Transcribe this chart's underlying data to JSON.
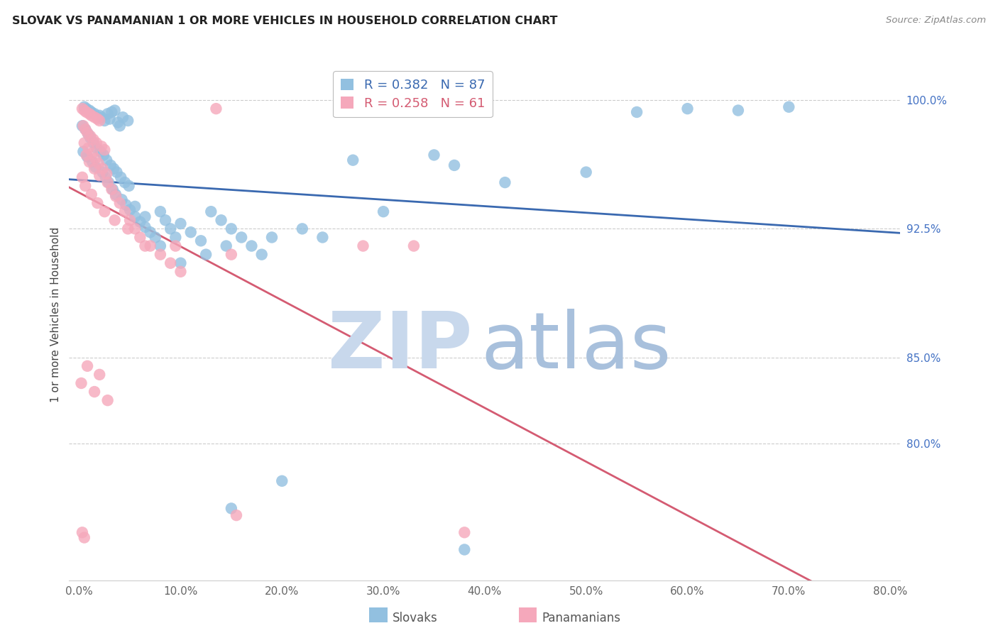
{
  "title": "SLOVAK VS PANAMANIAN 1 OR MORE VEHICLES IN HOUSEHOLD CORRELATION CHART",
  "source": "Source: ZipAtlas.com",
  "xlabel_vals": [
    0.0,
    10.0,
    20.0,
    30.0,
    40.0,
    50.0,
    60.0,
    70.0,
    80.0
  ],
  "ylabel_vals": [
    80.0,
    85.0,
    92.5,
    100.0
  ],
  "ylabel_label": "1 or more Vehicles in Household",
  "xlim": [
    -1.0,
    81.0
  ],
  "ylim": [
    72.0,
    103.0
  ],
  "blue_color": "#92C0E0",
  "pink_color": "#F5A8BB",
  "blue_line_color": "#3A69B0",
  "pink_line_color": "#D45B72",
  "watermark_zip_color": "#C8D8EC",
  "watermark_atlas_color": "#A8C0DC",
  "background_color": "#ffffff",
  "grid_color": "#cccccc",
  "title_color": "#222222",
  "axis_label_color": "#444444",
  "right_tick_color": "#4472c4",
  "tick_color": "#666666",
  "blue_scatter": [
    [
      0.5,
      99.6
    ],
    [
      0.7,
      99.5
    ],
    [
      1.0,
      99.4
    ],
    [
      1.2,
      99.3
    ],
    [
      1.5,
      99.2
    ],
    [
      1.8,
      99.0
    ],
    [
      2.0,
      99.1
    ],
    [
      2.2,
      99.0
    ],
    [
      2.5,
      98.8
    ],
    [
      2.8,
      99.2
    ],
    [
      3.0,
      98.9
    ],
    [
      3.2,
      99.3
    ],
    [
      3.5,
      99.4
    ],
    [
      3.8,
      98.7
    ],
    [
      4.0,
      98.5
    ],
    [
      4.3,
      99.0
    ],
    [
      4.8,
      98.8
    ],
    [
      0.3,
      98.5
    ],
    [
      0.6,
      98.3
    ],
    [
      0.9,
      98.0
    ],
    [
      1.1,
      97.8
    ],
    [
      1.4,
      97.5
    ],
    [
      1.7,
      97.2
    ],
    [
      2.1,
      97.0
    ],
    [
      2.4,
      96.8
    ],
    [
      2.7,
      96.5
    ],
    [
      3.1,
      96.2
    ],
    [
      3.4,
      96.0
    ],
    [
      3.7,
      95.8
    ],
    [
      4.1,
      95.5
    ],
    [
      4.5,
      95.2
    ],
    [
      4.9,
      95.0
    ],
    [
      0.4,
      97.0
    ],
    [
      0.8,
      96.7
    ],
    [
      1.3,
      96.4
    ],
    [
      1.6,
      96.1
    ],
    [
      2.3,
      95.8
    ],
    [
      2.6,
      95.5
    ],
    [
      2.9,
      95.2
    ],
    [
      3.3,
      94.8
    ],
    [
      3.6,
      94.5
    ],
    [
      4.2,
      94.2
    ],
    [
      4.6,
      93.9
    ],
    [
      5.0,
      93.6
    ],
    [
      5.5,
      93.2
    ],
    [
      6.0,
      92.9
    ],
    [
      6.5,
      92.6
    ],
    [
      7.0,
      92.3
    ],
    [
      7.5,
      92.0
    ],
    [
      8.0,
      93.5
    ],
    [
      8.5,
      93.0
    ],
    [
      9.0,
      92.5
    ],
    [
      9.5,
      92.0
    ],
    [
      10.0,
      92.8
    ],
    [
      11.0,
      92.3
    ],
    [
      12.0,
      91.8
    ],
    [
      13.0,
      93.5
    ],
    [
      14.0,
      93.0
    ],
    [
      15.0,
      92.5
    ],
    [
      16.0,
      92.0
    ],
    [
      17.0,
      91.5
    ],
    [
      18.0,
      91.0
    ],
    [
      5.5,
      93.8
    ],
    [
      6.5,
      93.2
    ],
    [
      8.0,
      91.5
    ],
    [
      10.0,
      90.5
    ],
    [
      12.5,
      91.0
    ],
    [
      14.5,
      91.5
    ],
    [
      19.0,
      92.0
    ],
    [
      22.0,
      92.5
    ],
    [
      24.0,
      92.0
    ],
    [
      27.0,
      96.5
    ],
    [
      30.0,
      93.5
    ],
    [
      35.0,
      96.8
    ],
    [
      37.0,
      96.2
    ],
    [
      42.0,
      95.2
    ],
    [
      50.0,
      95.8
    ],
    [
      55.0,
      99.3
    ],
    [
      60.0,
      99.5
    ],
    [
      65.0,
      99.4
    ],
    [
      70.0,
      99.6
    ],
    [
      20.0,
      77.8
    ],
    [
      15.0,
      76.2
    ],
    [
      38.0,
      73.8
    ]
  ],
  "pink_scatter": [
    [
      0.3,
      99.5
    ],
    [
      0.5,
      99.4
    ],
    [
      0.7,
      99.3
    ],
    [
      1.0,
      99.2
    ],
    [
      1.2,
      99.1
    ],
    [
      1.5,
      99.0
    ],
    [
      1.8,
      98.9
    ],
    [
      2.0,
      98.8
    ],
    [
      0.4,
      98.5
    ],
    [
      0.6,
      98.3
    ],
    [
      0.8,
      98.1
    ],
    [
      1.1,
      97.9
    ],
    [
      1.4,
      97.7
    ],
    [
      1.7,
      97.5
    ],
    [
      2.2,
      97.3
    ],
    [
      2.5,
      97.1
    ],
    [
      0.5,
      97.5
    ],
    [
      0.9,
      97.2
    ],
    [
      1.3,
      96.9
    ],
    [
      1.6,
      96.6
    ],
    [
      1.9,
      96.3
    ],
    [
      2.3,
      96.0
    ],
    [
      2.7,
      95.7
    ],
    [
      0.7,
      96.8
    ],
    [
      1.0,
      96.4
    ],
    [
      1.5,
      96.0
    ],
    [
      2.0,
      95.6
    ],
    [
      2.8,
      95.2
    ],
    [
      3.2,
      94.8
    ],
    [
      3.6,
      94.4
    ],
    [
      4.0,
      94.0
    ],
    [
      4.5,
      93.5
    ],
    [
      5.0,
      93.0
    ],
    [
      5.5,
      92.5
    ],
    [
      6.0,
      92.0
    ],
    [
      7.0,
      91.5
    ],
    [
      8.0,
      91.0
    ],
    [
      9.0,
      90.5
    ],
    [
      10.0,
      90.0
    ],
    [
      0.3,
      95.5
    ],
    [
      0.6,
      95.0
    ],
    [
      1.2,
      94.5
    ],
    [
      1.8,
      94.0
    ],
    [
      2.5,
      93.5
    ],
    [
      3.5,
      93.0
    ],
    [
      4.8,
      92.5
    ],
    [
      6.5,
      91.5
    ],
    [
      0.8,
      84.5
    ],
    [
      2.0,
      84.0
    ],
    [
      9.5,
      91.5
    ],
    [
      13.5,
      99.5
    ],
    [
      15.0,
      91.0
    ],
    [
      28.0,
      91.5
    ],
    [
      0.2,
      83.5
    ],
    [
      1.5,
      83.0
    ],
    [
      2.8,
      82.5
    ],
    [
      0.3,
      74.8
    ],
    [
      0.5,
      74.5
    ],
    [
      15.5,
      75.8
    ],
    [
      38.0,
      74.8
    ],
    [
      33.0,
      91.5
    ]
  ]
}
